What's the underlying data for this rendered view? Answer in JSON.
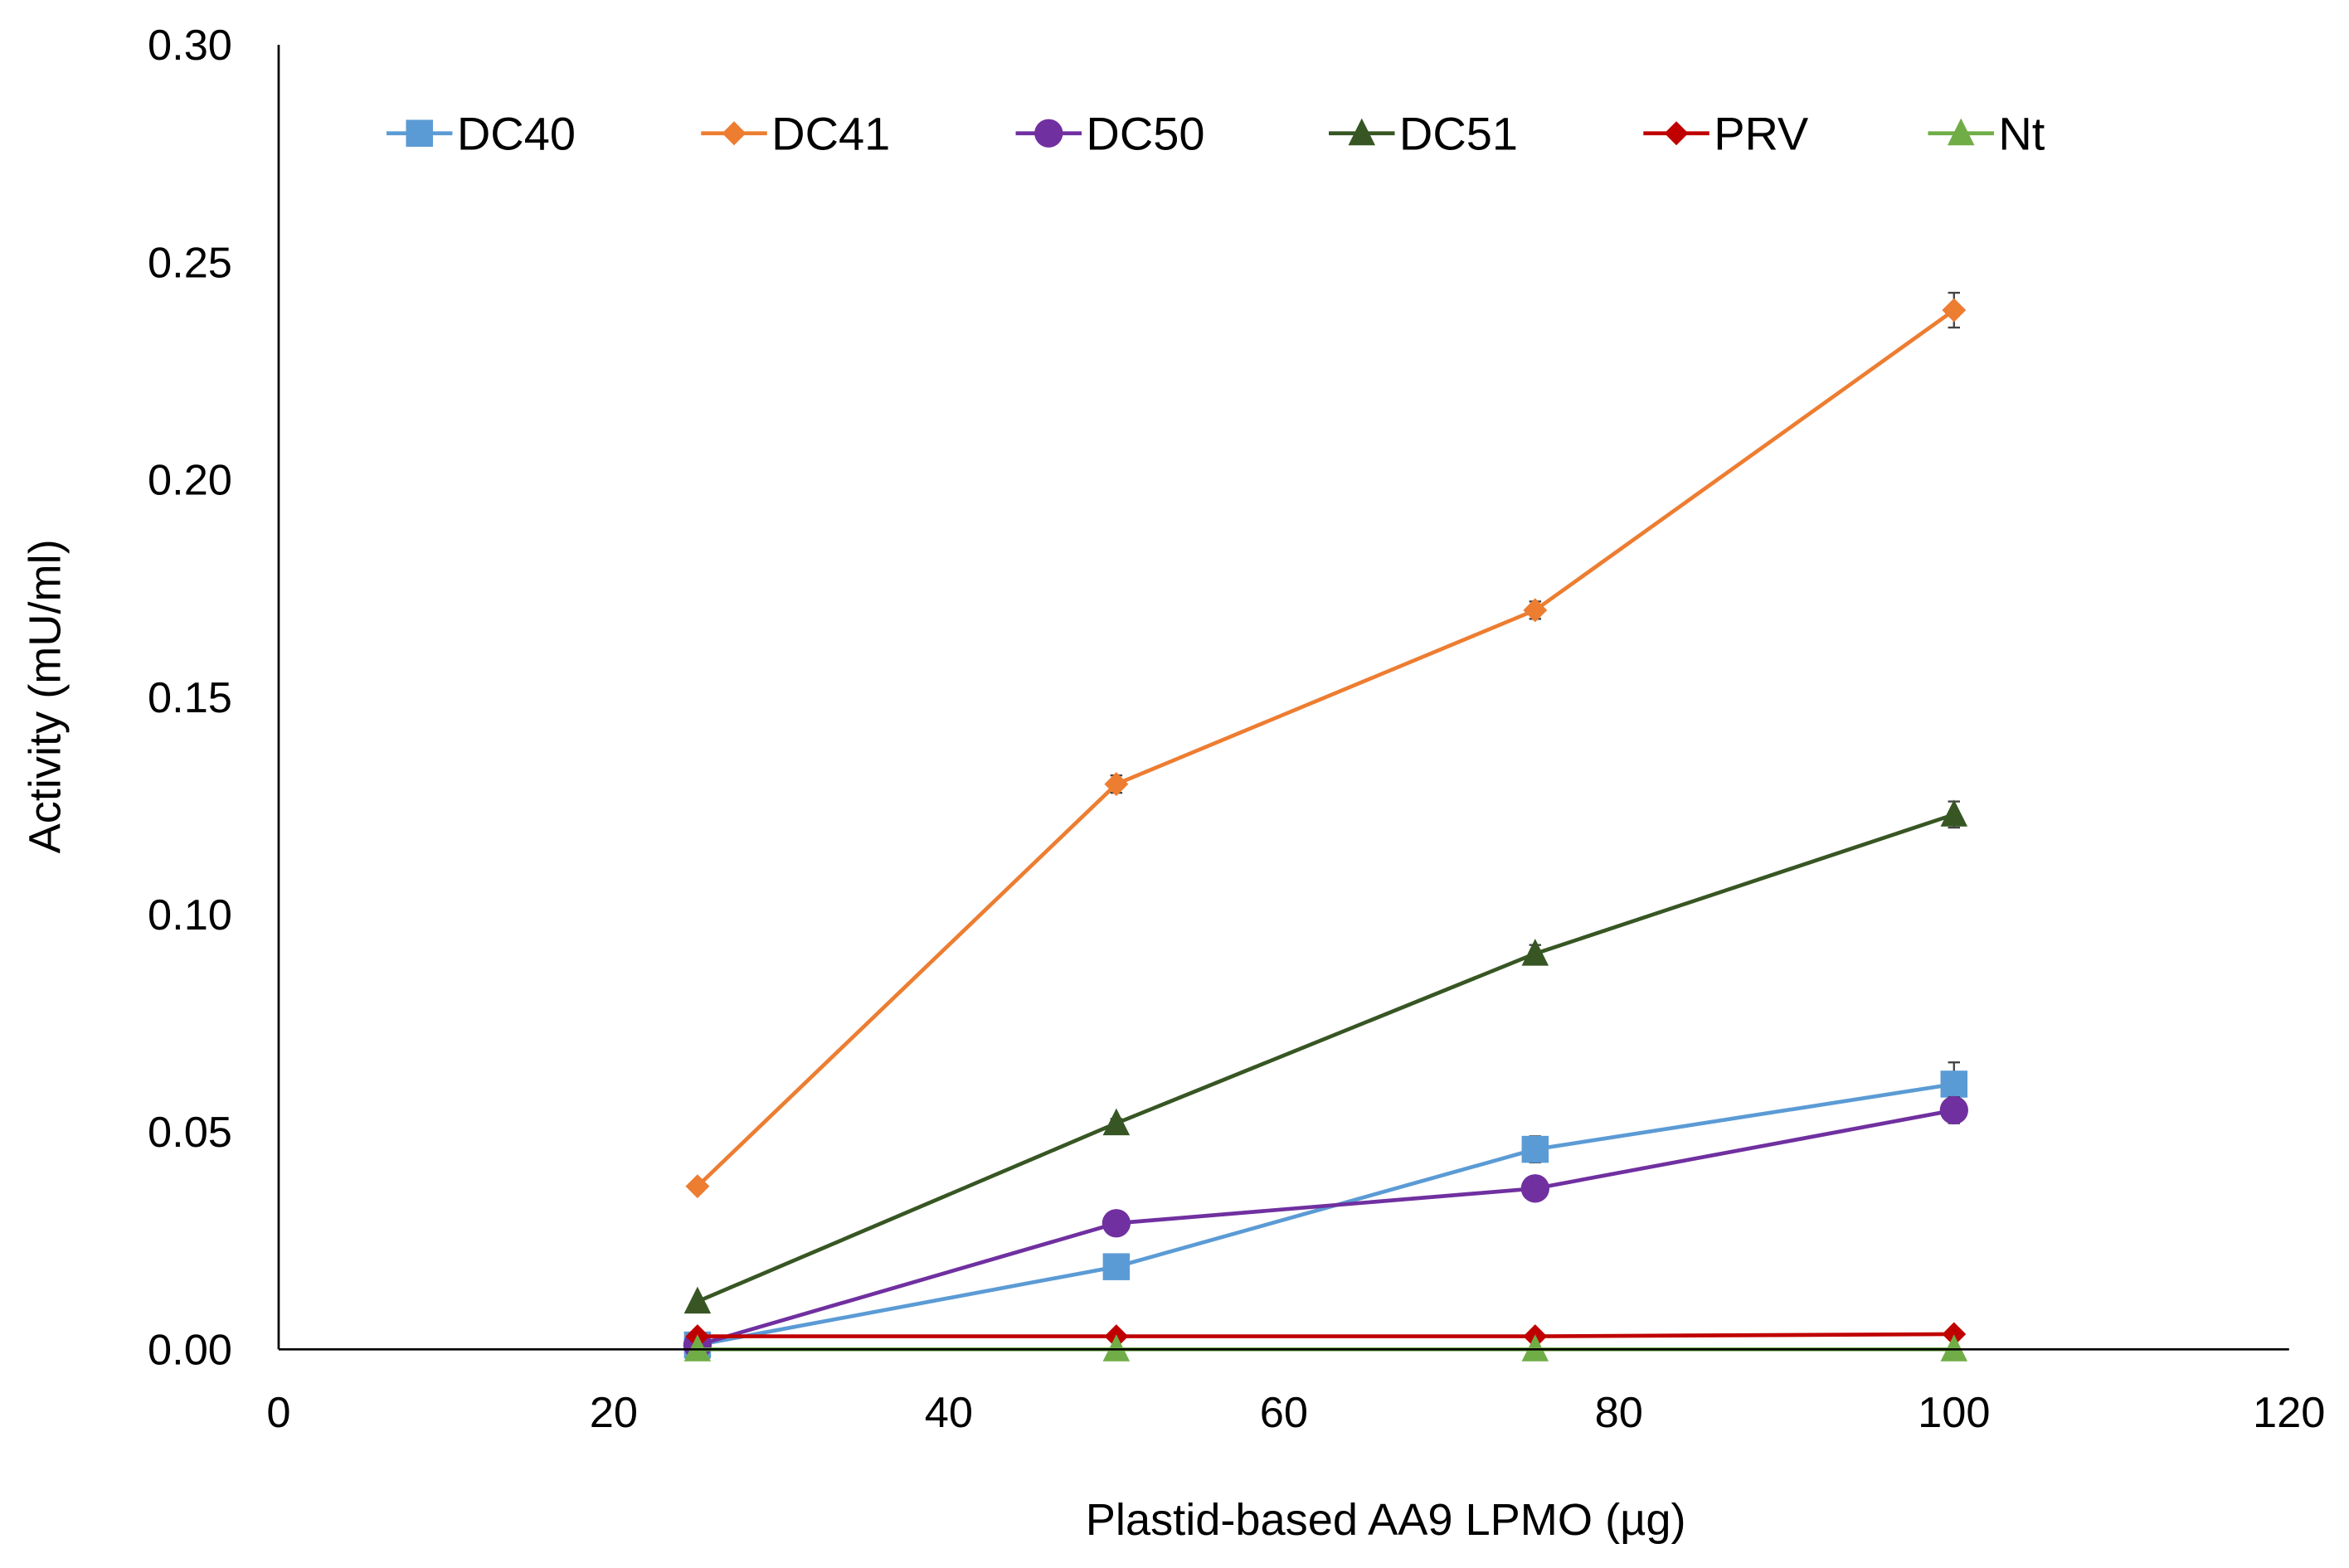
{
  "chart_data": {
    "type": "line",
    "title": "",
    "xlabel": "Plastid-based AA9 LPMO (µg)",
    "ylabel": "Activity (mU/ml)",
    "xlim": [
      0,
      120
    ],
    "ylim": [
      0,
      0.3
    ],
    "xticks": [
      "0",
      "20",
      "40",
      "60",
      "80",
      "100",
      "120"
    ],
    "yticks": [
      "0.00",
      "0.05",
      "0.10",
      "0.15",
      "0.20",
      "0.25",
      "0.30"
    ],
    "grid": false,
    "legend_position": "top",
    "x": [
      25,
      50,
      75,
      100
    ],
    "series": [
      {
        "name": "DC40",
        "color": "#5b9bd5",
        "marker": "square",
        "values": [
          0.001,
          0.019,
          0.046,
          0.061
        ],
        "errors": [
          0,
          0.001,
          0.003,
          0.005
        ]
      },
      {
        "name": "DC41",
        "color": "#ed7d31",
        "marker": "diamond",
        "values": [
          0.0375,
          0.13,
          0.17,
          0.239
        ],
        "errors": [
          0,
          0.002,
          0.002,
          0.004
        ]
      },
      {
        "name": "DC50",
        "color": "#7030a0",
        "marker": "circle",
        "values": [
          0.001,
          0.029,
          0.037,
          0.055
        ],
        "errors": [
          0,
          0.001,
          0.001,
          0.003
        ]
      },
      {
        "name": "DC51",
        "color": "#375623",
        "marker": "triangle",
        "values": [
          0.011,
          0.052,
          0.091,
          0.123
        ],
        "errors": [
          0,
          0.001,
          0.002,
          0.003
        ]
      },
      {
        "name": "PRV",
        "color": "#c00000",
        "marker": "diamond",
        "values": [
          0.003,
          0.003,
          0.003,
          0.0035
        ],
        "errors": [
          0,
          0,
          0,
          0
        ]
      },
      {
        "name": "Nt",
        "color": "#70ad47",
        "marker": "triangle",
        "values": [
          0,
          0,
          0,
          0
        ],
        "errors": [
          0,
          0,
          0,
          0
        ]
      }
    ]
  }
}
